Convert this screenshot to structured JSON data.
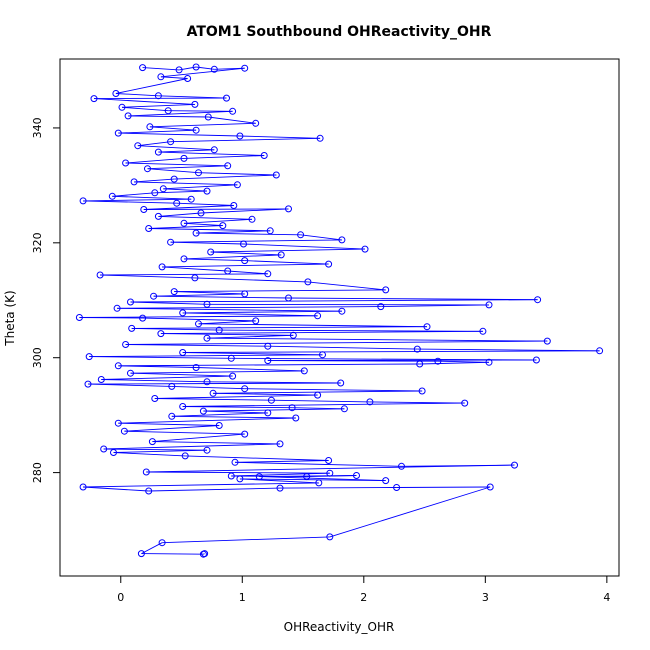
{
  "colors": {
    "series": "#0000ff",
    "axis": "#000000",
    "background": "#ffffff"
  },
  "chart_data": {
    "type": "scatter",
    "title": "ATOM1 Southbound OHReactivity_OHR",
    "xlabel": "OHReactivity_OHR",
    "ylabel": "Theta (K)",
    "xlim": [
      -0.5,
      4.1
    ],
    "ylim": [
      262,
      352
    ],
    "xticks": [
      0,
      1,
      2,
      3,
      4
    ],
    "yticks": [
      280,
      300,
      320,
      340
    ],
    "grid": false,
    "legend": "none",
    "marker": "open-circle",
    "connected": true,
    "series": [
      {
        "points": [
          [
            0.18,
            350.5
          ],
          [
            0.48,
            350.1
          ],
          [
            0.62,
            350.6
          ],
          [
            0.77,
            350.2
          ],
          [
            1.02,
            350.4
          ],
          [
            0.33,
            348.9
          ],
          [
            0.55,
            348.6
          ],
          [
            -0.04,
            346.0
          ],
          [
            0.31,
            345.6
          ],
          [
            0.87,
            345.2
          ],
          [
            -0.22,
            345.1
          ],
          [
            0.61,
            344.1
          ],
          [
            0.01,
            343.6
          ],
          [
            0.39,
            343.0
          ],
          [
            0.92,
            342.9
          ],
          [
            0.06,
            342.1
          ],
          [
            0.72,
            341.9
          ],
          [
            1.11,
            340.8
          ],
          [
            0.24,
            340.2
          ],
          [
            0.62,
            339.6
          ],
          [
            -0.02,
            339.1
          ],
          [
            0.98,
            338.6
          ],
          [
            1.64,
            338.2
          ],
          [
            0.41,
            337.6
          ],
          [
            0.14,
            336.9
          ],
          [
            0.77,
            336.2
          ],
          [
            0.31,
            335.8
          ],
          [
            1.18,
            335.2
          ],
          [
            0.52,
            334.7
          ],
          [
            0.04,
            333.9
          ],
          [
            0.88,
            333.4
          ],
          [
            0.22,
            332.9
          ],
          [
            0.64,
            332.2
          ],
          [
            1.28,
            331.8
          ],
          [
            0.44,
            331.1
          ],
          [
            0.11,
            330.6
          ],
          [
            0.96,
            330.1
          ],
          [
            0.35,
            329.4
          ],
          [
            0.71,
            329.0
          ],
          [
            0.28,
            328.7
          ],
          [
            -0.07,
            328.1
          ],
          [
            0.58,
            327.6
          ],
          [
            -0.31,
            327.3
          ],
          [
            0.46,
            326.9
          ],
          [
            0.93,
            326.5
          ],
          [
            0.19,
            325.8
          ],
          [
            1.38,
            325.9
          ],
          [
            0.66,
            325.2
          ],
          [
            0.31,
            324.6
          ],
          [
            1.08,
            324.1
          ],
          [
            0.52,
            323.4
          ],
          [
            0.84,
            323.0
          ],
          [
            0.23,
            322.5
          ],
          [
            1.23,
            322.1
          ],
          [
            0.62,
            321.7
          ],
          [
            1.48,
            321.4
          ],
          [
            1.82,
            320.5
          ],
          [
            0.41,
            320.1
          ],
          [
            1.01,
            319.8
          ],
          [
            2.01,
            318.9
          ],
          [
            0.74,
            318.4
          ],
          [
            1.32,
            317.9
          ],
          [
            0.52,
            317.2
          ],
          [
            1.02,
            316.9
          ],
          [
            1.71,
            316.3
          ],
          [
            0.34,
            315.8
          ],
          [
            0.88,
            315.1
          ],
          [
            1.21,
            314.6
          ],
          [
            -0.17,
            314.4
          ],
          [
            0.61,
            313.9
          ],
          [
            1.54,
            313.2
          ],
          [
            2.18,
            311.8
          ],
          [
            0.44,
            311.5
          ],
          [
            1.02,
            311.1
          ],
          [
            0.27,
            310.7
          ],
          [
            1.38,
            310.4
          ],
          [
            3.43,
            310.1
          ],
          [
            0.08,
            309.7
          ],
          [
            0.71,
            309.3
          ],
          [
            3.03,
            309.2
          ],
          [
            2.14,
            308.9
          ],
          [
            -0.03,
            308.6
          ],
          [
            1.82,
            308.1
          ],
          [
            0.51,
            307.8
          ],
          [
            1.62,
            307.3
          ],
          [
            -0.34,
            307.0
          ],
          [
            0.18,
            306.9
          ],
          [
            1.11,
            306.4
          ],
          [
            0.64,
            305.9
          ],
          [
            2.52,
            305.4
          ],
          [
            0.09,
            305.1
          ],
          [
            0.81,
            304.8
          ],
          [
            2.98,
            304.6
          ],
          [
            0.33,
            304.2
          ],
          [
            1.42,
            303.9
          ],
          [
            0.71,
            303.4
          ],
          [
            3.51,
            302.9
          ],
          [
            0.04,
            302.3
          ],
          [
            1.21,
            302.0
          ],
          [
            2.44,
            301.5
          ],
          [
            3.94,
            301.2
          ],
          [
            0.51,
            300.9
          ],
          [
            1.66,
            300.5
          ],
          [
            -0.26,
            300.2
          ],
          [
            0.91,
            299.9
          ],
          [
            3.42,
            299.6
          ],
          [
            1.21,
            299.5
          ],
          [
            2.61,
            299.4
          ],
          [
            3.03,
            299.2
          ],
          [
            2.46,
            298.9
          ],
          [
            -0.02,
            298.6
          ],
          [
            0.62,
            298.3
          ],
          [
            1.51,
            297.7
          ],
          [
            0.08,
            297.3
          ],
          [
            0.92,
            296.8
          ],
          [
            -0.16,
            296.2
          ],
          [
            0.71,
            295.8
          ],
          [
            1.81,
            295.6
          ],
          [
            -0.27,
            295.4
          ],
          [
            0.42,
            295.0
          ],
          [
            1.02,
            294.6
          ],
          [
            2.48,
            294.2
          ],
          [
            0.76,
            293.8
          ],
          [
            1.62,
            293.5
          ],
          [
            0.28,
            292.9
          ],
          [
            1.24,
            292.6
          ],
          [
            2.05,
            292.3
          ],
          [
            2.83,
            292.1
          ],
          [
            0.51,
            291.5
          ],
          [
            1.41,
            291.3
          ],
          [
            1.84,
            291.1
          ],
          [
            0.68,
            290.7
          ],
          [
            1.21,
            290.4
          ],
          [
            0.42,
            289.8
          ],
          [
            1.44,
            289.5
          ],
          [
            -0.02,
            288.6
          ],
          [
            0.81,
            288.2
          ],
          [
            0.03,
            287.2
          ],
          [
            1.02,
            286.7
          ],
          [
            0.26,
            285.4
          ],
          [
            1.31,
            285.0
          ],
          [
            -0.14,
            284.1
          ],
          [
            0.71,
            283.9
          ],
          [
            -0.06,
            283.5
          ],
          [
            0.53,
            282.9
          ],
          [
            1.71,
            282.1
          ],
          [
            0.94,
            281.8
          ],
          [
            2.31,
            281.1
          ],
          [
            3.24,
            281.3
          ],
          [
            0.21,
            280.1
          ],
          [
            1.72,
            279.9
          ],
          [
            0.91,
            279.4
          ],
          [
            1.53,
            279.3
          ],
          [
            1.94,
            279.5
          ],
          [
            1.14,
            279.3
          ],
          [
            2.18,
            278.6
          ],
          [
            0.98,
            278.9
          ],
          [
            1.63,
            278.2
          ],
          [
            -0.31,
            277.5
          ],
          [
            0.23,
            276.8
          ],
          [
            1.31,
            277.3
          ],
          [
            2.27,
            277.4
          ],
          [
            3.04,
            277.5
          ],
          [
            1.72,
            268.8
          ],
          [
            0.34,
            267.8
          ],
          [
            0.17,
            265.9
          ],
          [
            0.68,
            265.8
          ],
          [
            0.69,
            265.9
          ]
        ]
      }
    ]
  }
}
